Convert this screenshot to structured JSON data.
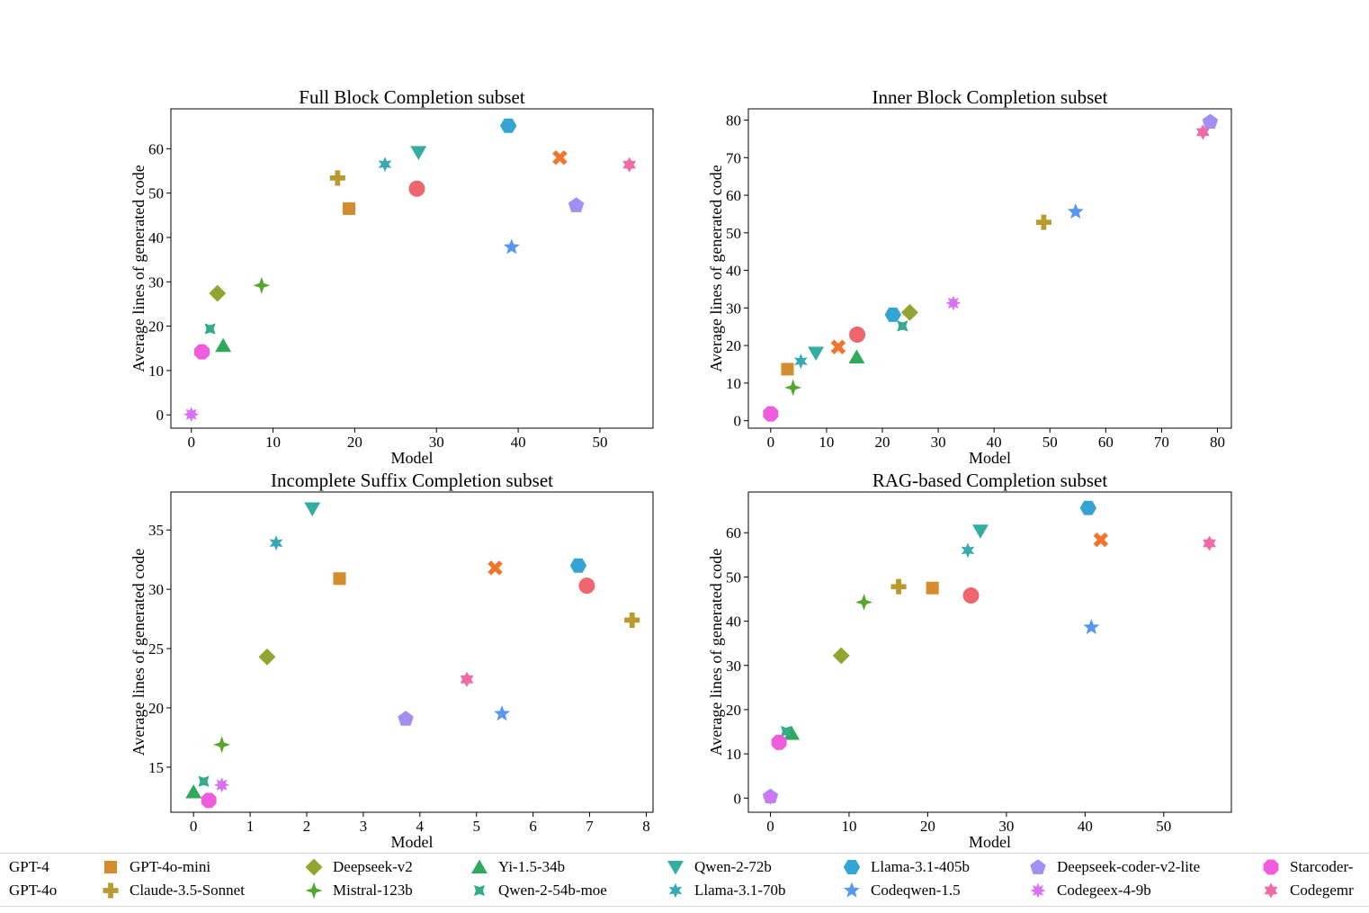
{
  "colors": {
    "GPT-4": "#f0666f",
    "GPT-4o-mini": "#d48c2e",
    "Claude-3.5-Sonnet": "#b89a30",
    "Deepseek-v2": "#93a430",
    "Mistral-123b": "#55a630",
    "Yi-1.5-34b": "#31a95a",
    "Qwen-2-54b-moe": "#33ab8c",
    "Qwen-2-72b": "#33aca2",
    "Llama-3.1-70b": "#36a9b4",
    "Llama-3.1-405b": "#33a4d4",
    "Codeqwen-1.5": "#5897f0",
    "Deepseek-coder-v2-lite": "#a38ef2",
    "Codegeex-4-9b": "#d872f2",
    "Starcoder": "#f05ddc",
    "GPT-4o": "#f07630",
    "Codegemma": "#f16aa8"
  },
  "legend": {
    "items": [
      {
        "label": "GPT-4",
        "marker": "circle",
        "key": "GPT-4"
      },
      {
        "label": "GPT-4o",
        "marker": "x",
        "key": "GPT-4o"
      },
      {
        "label": "GPT-4o-mini",
        "marker": "square",
        "key": "GPT-4o-mini"
      },
      {
        "label": "Claude-3.5-Sonnet",
        "marker": "plus",
        "key": "Claude-3.5-Sonnet"
      },
      {
        "label": "Deepseek-v2",
        "marker": "diamond",
        "key": "Deepseek-v2"
      },
      {
        "label": "Mistral-123b",
        "marker": "star4",
        "key": "Mistral-123b"
      },
      {
        "label": "Yi-1.5-34b",
        "marker": "triangle-up",
        "key": "Yi-1.5-34b"
      },
      {
        "label": "Qwen-2-54b-moe",
        "marker": "star4x",
        "key": "Qwen-2-54b-moe"
      },
      {
        "label": "Qwen-2-72b",
        "marker": "triangle-down",
        "key": "Qwen-2-72b"
      },
      {
        "label": "Llama-3.1-70b",
        "marker": "star6",
        "key": "Llama-3.1-70b"
      },
      {
        "label": "Llama-3.1-405b",
        "marker": "hexagon",
        "key": "Llama-3.1-405b"
      },
      {
        "label": "Codeqwen-1.5",
        "marker": "star5",
        "key": "Codeqwen-1.5"
      },
      {
        "label": "Deepseek-coder-v2-lite",
        "marker": "pentagon",
        "key": "Deepseek-coder-v2-lite"
      },
      {
        "label": "Codegeex-4-9b",
        "marker": "star8",
        "key": "Codegeex-4-9b"
      },
      {
        "label": "Starcoder-",
        "marker": "octagon",
        "key": "Starcoder"
      },
      {
        "label": "Codegemr",
        "marker": "star6s",
        "key": "Codegemma"
      }
    ]
  },
  "chart_data": [
    {
      "type": "scatter",
      "title": "Full Block Completion subset",
      "xlabel": "Model",
      "ylabel": "Average lines of generated code",
      "xlim": [
        -2.5,
        56.5
      ],
      "ylim": [
        -3,
        69
      ],
      "xticks": [
        0,
        10,
        20,
        30,
        40,
        50
      ],
      "yticks": [
        0,
        10,
        20,
        30,
        40,
        50,
        60
      ],
      "grid": false,
      "points": [
        {
          "series": "GPT-4",
          "x": 27.6,
          "y": 51.0
        },
        {
          "series": "GPT-4o-mini",
          "x": 19.3,
          "y": 46.5
        },
        {
          "series": "Claude-3.5-Sonnet",
          "x": 17.9,
          "y": 53.4
        },
        {
          "series": "Deepseek-v2",
          "x": 3.2,
          "y": 27.4
        },
        {
          "series": "Mistral-123b",
          "x": 8.6,
          "y": 29.2
        },
        {
          "series": "Yi-1.5-34b",
          "x": 3.9,
          "y": 15.6
        },
        {
          "series": "Qwen-2-54b-moe",
          "x": 2.3,
          "y": 19.4
        },
        {
          "series": "Qwen-2-72b",
          "x": 27.8,
          "y": 59.2
        },
        {
          "series": "Llama-3.1-70b",
          "x": 23.7,
          "y": 56.5
        },
        {
          "series": "Llama-3.1-405b",
          "x": 38.8,
          "y": 65.2
        },
        {
          "series": "Codeqwen-1.5",
          "x": 39.2,
          "y": 37.8
        },
        {
          "series": "Deepseek-coder-v2-lite",
          "x": 47.1,
          "y": 47.3
        },
        {
          "series": "Codegeex-4-9b",
          "x": 0.0,
          "y": 0.1
        },
        {
          "series": "Starcoder",
          "x": 1.3,
          "y": 14.2
        },
        {
          "series": "GPT-4o",
          "x": 45.1,
          "y": 58.0
        },
        {
          "series": "Codegemma",
          "x": 53.6,
          "y": 56.4
        }
      ]
    },
    {
      "type": "scatter",
      "title": "Inner Block Completion subset",
      "xlabel": "Model",
      "ylabel": "Average lines of generated code",
      "xlim": [
        -4,
        82.5
      ],
      "ylim": [
        -2,
        83
      ],
      "xticks": [
        0,
        10,
        20,
        30,
        40,
        50,
        60,
        70,
        80
      ],
      "yticks": [
        0,
        10,
        20,
        30,
        40,
        50,
        60,
        70,
        80
      ],
      "grid": false,
      "points": [
        {
          "series": "GPT-4",
          "x": 15.5,
          "y": 22.9
        },
        {
          "series": "GPT-4o-mini",
          "x": 3.0,
          "y": 13.7
        },
        {
          "series": "Claude-3.5-Sonnet",
          "x": 48.9,
          "y": 52.8
        },
        {
          "series": "Deepseek-v2",
          "x": 24.9,
          "y": 28.8
        },
        {
          "series": "Mistral-123b",
          "x": 4.0,
          "y": 8.8
        },
        {
          "series": "Yi-1.5-34b",
          "x": 15.4,
          "y": 16.9
        },
        {
          "series": "Qwen-2-54b-moe",
          "x": 23.6,
          "y": 25.2
        },
        {
          "series": "Qwen-2-72b",
          "x": 8.1,
          "y": 18.0
        },
        {
          "series": "Llama-3.1-70b",
          "x": 5.4,
          "y": 15.8
        },
        {
          "series": "Llama-3.1-405b",
          "x": 21.9,
          "y": 28.2
        },
        {
          "series": "Codeqwen-1.5",
          "x": 54.6,
          "y": 55.6
        },
        {
          "series": "Deepseek-coder-v2-lite",
          "x": 78.7,
          "y": 79.6
        },
        {
          "series": "Codegeex-4-9b",
          "x": 32.7,
          "y": 31.3
        },
        {
          "series": "Starcoder",
          "x": 0.0,
          "y": 1.8
        },
        {
          "series": "GPT-4o",
          "x": 12.1,
          "y": 19.6
        },
        {
          "series": "Codegemma",
          "x": 77.4,
          "y": 76.8
        }
      ]
    },
    {
      "type": "scatter",
      "title": "Incomplete Suffix Completion subset",
      "xlabel": "Model",
      "ylabel": "Average lines of generated code",
      "xlim": [
        -0.4,
        8.12
      ],
      "ylim": [
        11.2,
        38.2
      ],
      "xticks": [
        0,
        1,
        2,
        3,
        4,
        5,
        6,
        7,
        8
      ],
      "yticks": [
        15,
        20,
        25,
        30,
        35
      ],
      "grid": false,
      "points": [
        {
          "series": "GPT-4",
          "x": 6.95,
          "y": 30.3
        },
        {
          "series": "GPT-4o-mini",
          "x": 2.58,
          "y": 30.9
        },
        {
          "series": "Claude-3.5-Sonnet",
          "x": 7.75,
          "y": 27.4
        },
        {
          "series": "Deepseek-v2",
          "x": 1.3,
          "y": 24.3
        },
        {
          "series": "Mistral-123b",
          "x": 0.5,
          "y": 16.9
        },
        {
          "series": "Yi-1.5-34b",
          "x": 0.0,
          "y": 12.9
        },
        {
          "series": "Qwen-2-54b-moe",
          "x": 0.18,
          "y": 13.8
        },
        {
          "series": "Qwen-2-72b",
          "x": 2.1,
          "y": 36.8
        },
        {
          "series": "Llama-3.1-70b",
          "x": 1.46,
          "y": 33.9
        },
        {
          "series": "Llama-3.1-405b",
          "x": 6.8,
          "y": 32.0
        },
        {
          "series": "Codeqwen-1.5",
          "x": 5.45,
          "y": 19.5
        },
        {
          "series": "Deepseek-coder-v2-lite",
          "x": 3.75,
          "y": 19.1
        },
        {
          "series": "Codegeex-4-9b",
          "x": 0.5,
          "y": 13.5
        },
        {
          "series": "Starcoder",
          "x": 0.27,
          "y": 12.2
        },
        {
          "series": "GPT-4o",
          "x": 5.33,
          "y": 31.8
        },
        {
          "series": "Codegemma",
          "x": 4.83,
          "y": 22.4
        }
      ]
    },
    {
      "type": "scatter",
      "title": "RAG-based Completion subset",
      "xlabel": "Model",
      "ylabel": "Average lines of generated code",
      "xlim": [
        -2.8,
        58.6
      ],
      "ylim": [
        -3.2,
        69.2
      ],
      "xticks": [
        0,
        10,
        20,
        30,
        40,
        50
      ],
      "yticks": [
        0,
        10,
        20,
        30,
        40,
        50,
        60
      ],
      "grid": false,
      "points": [
        {
          "series": "GPT-4",
          "x": 25.5,
          "y": 45.8
        },
        {
          "series": "GPT-4o-mini",
          "x": 20.6,
          "y": 47.5
        },
        {
          "series": "Claude-3.5-Sonnet",
          "x": 16.3,
          "y": 47.8
        },
        {
          "series": "Deepseek-v2",
          "x": 9.0,
          "y": 32.2
        },
        {
          "series": "Mistral-123b",
          "x": 11.9,
          "y": 44.3
        },
        {
          "series": "Yi-1.5-34b",
          "x": 2.7,
          "y": 14.6
        },
        {
          "series": "Qwen-2-54b-moe",
          "x": 2.0,
          "y": 15.1
        },
        {
          "series": "Qwen-2-72b",
          "x": 26.7,
          "y": 60.4
        },
        {
          "series": "Llama-3.1-70b",
          "x": 25.1,
          "y": 56.0
        },
        {
          "series": "Llama-3.1-405b",
          "x": 40.4,
          "y": 65.6
        },
        {
          "series": "Codeqwen-1.5",
          "x": 40.8,
          "y": 38.6
        },
        {
          "series": "Deepseek-coder-v2-lite",
          "x": 0.0,
          "y": 0.4
        },
        {
          "series": "Codegeex-4-9b",
          "x": 0.0,
          "y": 0.2
        },
        {
          "series": "Starcoder",
          "x": 1.1,
          "y": 12.6
        },
        {
          "series": "GPT-4o",
          "x": 42.0,
          "y": 58.4
        },
        {
          "series": "Codegemma",
          "x": 55.8,
          "y": 57.6
        }
      ]
    }
  ]
}
